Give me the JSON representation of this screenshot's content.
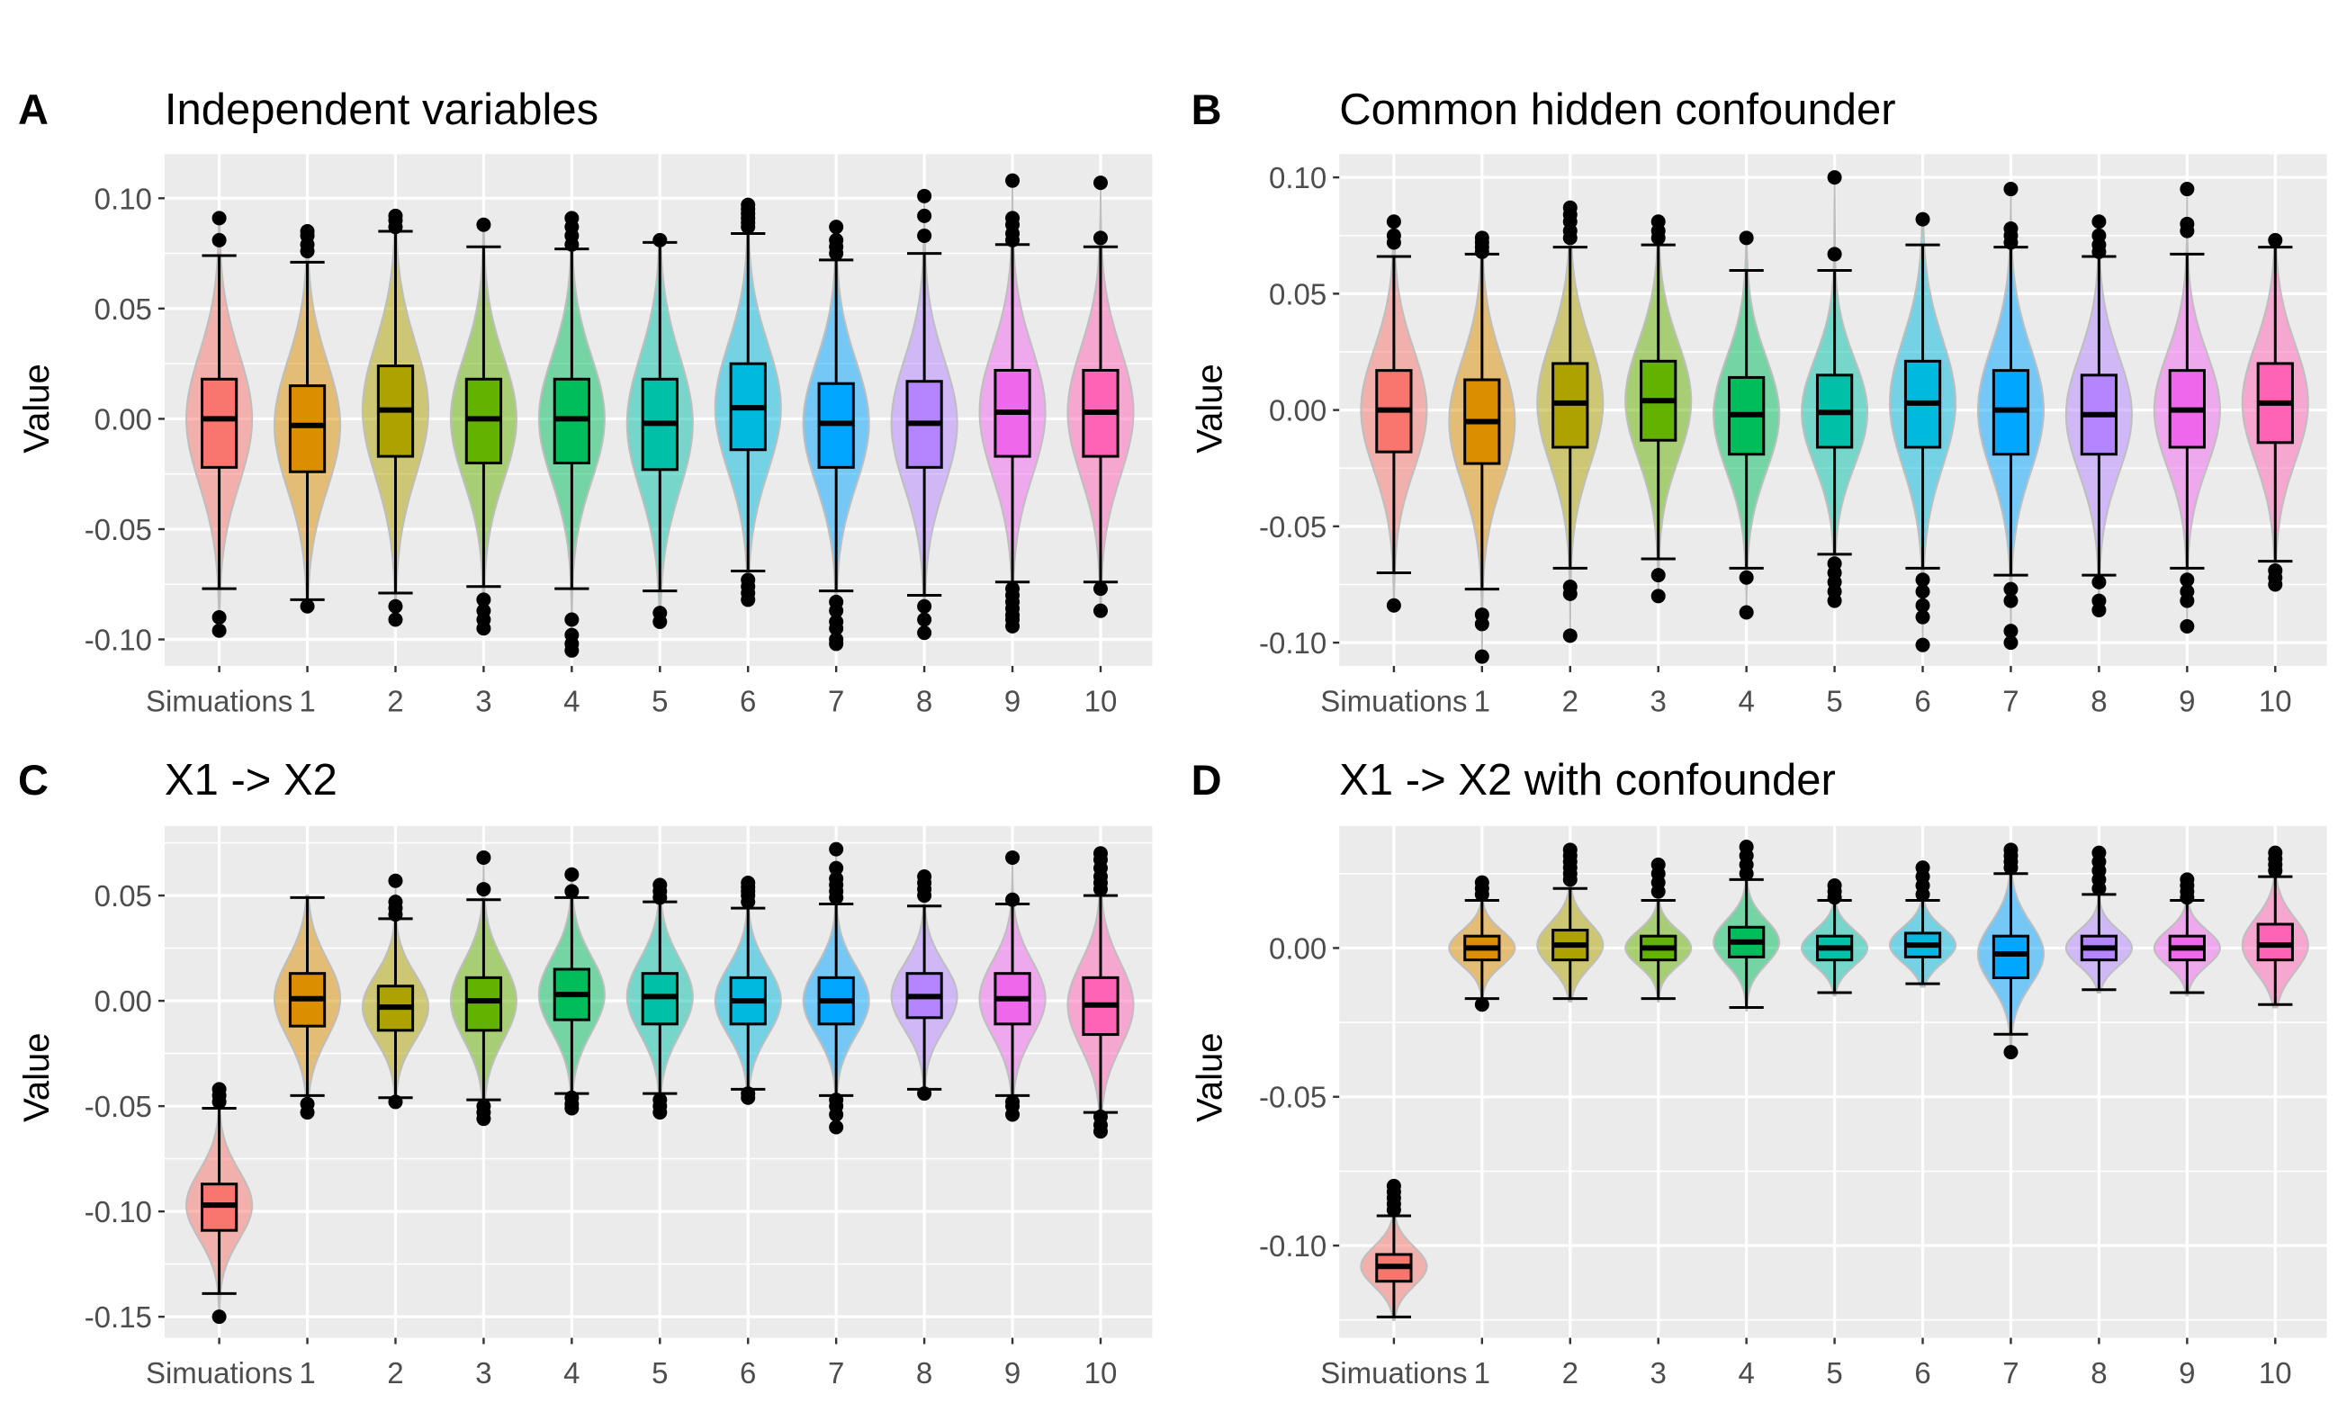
{
  "chart_data": [
    {
      "type": "boxplot",
      "subtype": "violin+box",
      "panel_label": "A",
      "title": "Independent variables",
      "ylabel": "Value",
      "xlabel": "",
      "categories": [
        "Simuations",
        "1",
        "2",
        "3",
        "4",
        "5",
        "6",
        "7",
        "8",
        "9",
        "10"
      ],
      "ylim": [
        -0.112,
        0.12
      ],
      "yticks": [
        -0.1,
        -0.05,
        0.0,
        0.05,
        0.1
      ],
      "ytick_labels": [
        "-0.10",
        "-0.05",
        "0.00",
        "0.05",
        "0.10"
      ],
      "boxes": [
        {
          "lower_whisker": -0.077,
          "q1": -0.022,
          "median": 0.0,
          "q3": 0.018,
          "upper_whisker": 0.074,
          "outliers": [
            0.091,
            0.081,
            -0.09,
            -0.096
          ],
          "violin_min": -0.098,
          "violin_max": 0.092
        },
        {
          "lower_whisker": -0.082,
          "q1": -0.024,
          "median": -0.003,
          "q3": 0.015,
          "upper_whisker": 0.071,
          "outliers": [
            0.085,
            0.083,
            0.079,
            0.076,
            -0.085
          ],
          "violin_min": -0.086,
          "violin_max": 0.086
        },
        {
          "lower_whisker": -0.079,
          "q1": -0.017,
          "median": 0.004,
          "q3": 0.024,
          "upper_whisker": 0.085,
          "outliers": [
            0.092,
            0.09,
            0.087,
            -0.085,
            -0.091
          ],
          "violin_min": -0.092,
          "violin_max": 0.093
        },
        {
          "lower_whisker": -0.076,
          "q1": -0.02,
          "median": 0.0,
          "q3": 0.018,
          "upper_whisker": 0.078,
          "outliers": [
            0.088,
            -0.082,
            -0.087,
            -0.091,
            -0.095
          ],
          "violin_min": -0.096,
          "violin_max": 0.089
        },
        {
          "lower_whisker": -0.077,
          "q1": -0.02,
          "median": 0.0,
          "q3": 0.018,
          "upper_whisker": 0.077,
          "outliers": [
            0.091,
            0.087,
            0.083,
            0.079,
            -0.091,
            -0.098,
            -0.102,
            -0.105
          ],
          "violin_min": -0.106,
          "violin_max": 0.092
        },
        {
          "lower_whisker": -0.078,
          "q1": -0.023,
          "median": -0.002,
          "q3": 0.018,
          "upper_whisker": 0.08,
          "outliers": [
            0.081,
            -0.088,
            -0.092
          ],
          "violin_min": -0.093,
          "violin_max": 0.082
        },
        {
          "lower_whisker": -0.069,
          "q1": -0.014,
          "median": 0.005,
          "q3": 0.025,
          "upper_whisker": 0.084,
          "outliers": [
            0.097,
            0.095,
            0.093,
            0.091,
            0.089,
            0.087,
            -0.073,
            -0.076,
            -0.079,
            -0.082
          ],
          "violin_min": -0.083,
          "violin_max": 0.098
        },
        {
          "lower_whisker": -0.078,
          "q1": -0.022,
          "median": -0.002,
          "q3": 0.016,
          "upper_whisker": 0.072,
          "outliers": [
            0.087,
            0.081,
            0.078,
            0.075,
            -0.083,
            -0.087,
            -0.092,
            -0.095,
            -0.1,
            -0.102
          ],
          "violin_min": -0.103,
          "violin_max": 0.088
        },
        {
          "lower_whisker": -0.08,
          "q1": -0.022,
          "median": -0.002,
          "q3": 0.017,
          "upper_whisker": 0.075,
          "outliers": [
            0.101,
            0.092,
            0.083,
            -0.085,
            -0.091,
            -0.097
          ],
          "violin_min": -0.098,
          "violin_max": 0.102
        },
        {
          "lower_whisker": -0.074,
          "q1": -0.017,
          "median": 0.003,
          "q3": 0.022,
          "upper_whisker": 0.079,
          "outliers": [
            0.108,
            0.091,
            0.088,
            0.084,
            0.081,
            -0.077,
            -0.08,
            -0.083,
            -0.086,
            -0.089,
            -0.091,
            -0.094
          ],
          "violin_min": -0.095,
          "violin_max": 0.109
        },
        {
          "lower_whisker": -0.074,
          "q1": -0.017,
          "median": 0.003,
          "q3": 0.022,
          "upper_whisker": 0.078,
          "outliers": [
            0.107,
            0.082,
            -0.077,
            -0.087
          ],
          "violin_min": -0.088,
          "violin_max": 0.108
        }
      ]
    },
    {
      "type": "boxplot",
      "subtype": "violin+box",
      "panel_label": "B",
      "title": "Common hidden confounder",
      "ylabel": "Value",
      "xlabel": "",
      "categories": [
        "Simuations",
        "1",
        "2",
        "3",
        "4",
        "5",
        "6",
        "7",
        "8",
        "9",
        "10"
      ],
      "ylim": [
        -0.11,
        0.11
      ],
      "yticks": [
        -0.1,
        -0.05,
        0.0,
        0.05,
        0.1
      ],
      "ytick_labels": [
        "-0.10",
        "-0.05",
        "0.00",
        "0.05",
        "0.10"
      ],
      "boxes": [
        {
          "lower_whisker": -0.07,
          "q1": -0.018,
          "median": 0.0,
          "q3": 0.017,
          "upper_whisker": 0.066,
          "outliers": [
            0.081,
            0.075,
            0.072,
            -0.084
          ],
          "violin_min": -0.085,
          "violin_max": 0.082
        },
        {
          "lower_whisker": -0.077,
          "q1": -0.023,
          "median": -0.005,
          "q3": 0.013,
          "upper_whisker": 0.067,
          "outliers": [
            0.074,
            0.072,
            0.07,
            0.068,
            -0.088,
            -0.092,
            -0.106
          ],
          "violin_min": -0.107,
          "violin_max": 0.075
        },
        {
          "lower_whisker": -0.068,
          "q1": -0.016,
          "median": 0.003,
          "q3": 0.02,
          "upper_whisker": 0.07,
          "outliers": [
            0.087,
            0.084,
            0.081,
            0.077,
            0.074,
            -0.076,
            -0.079,
            -0.097
          ],
          "violin_min": -0.098,
          "violin_max": 0.088
        },
        {
          "lower_whisker": -0.064,
          "q1": -0.013,
          "median": 0.004,
          "q3": 0.021,
          "upper_whisker": 0.071,
          "outliers": [
            0.081,
            0.077,
            0.074,
            -0.071,
            -0.08
          ],
          "violin_min": -0.081,
          "violin_max": 0.082
        },
        {
          "lower_whisker": -0.068,
          "q1": -0.019,
          "median": -0.002,
          "q3": 0.014,
          "upper_whisker": 0.06,
          "outliers": [
            0.074,
            -0.072,
            -0.087
          ],
          "violin_min": -0.088,
          "violin_max": 0.075
        },
        {
          "lower_whisker": -0.062,
          "q1": -0.016,
          "median": -0.001,
          "q3": 0.015,
          "upper_whisker": 0.06,
          "outliers": [
            0.1,
            0.067,
            -0.066,
            -0.07,
            -0.074,
            -0.078,
            -0.082
          ],
          "violin_min": -0.083,
          "violin_max": 0.101
        },
        {
          "lower_whisker": -0.068,
          "q1": -0.016,
          "median": 0.003,
          "q3": 0.021,
          "upper_whisker": 0.071,
          "outliers": [
            0.082,
            -0.073,
            -0.078,
            -0.084,
            -0.089,
            -0.101
          ],
          "violin_min": -0.102,
          "violin_max": 0.083
        },
        {
          "lower_whisker": -0.071,
          "q1": -0.019,
          "median": 0.0,
          "q3": 0.017,
          "upper_whisker": 0.07,
          "outliers": [
            0.095,
            0.078,
            0.075,
            0.072,
            -0.077,
            -0.082,
            -0.095,
            -0.1
          ],
          "violin_min": -0.101,
          "violin_max": 0.096
        },
        {
          "lower_whisker": -0.071,
          "q1": -0.019,
          "median": -0.002,
          "q3": 0.015,
          "upper_whisker": 0.066,
          "outliers": [
            0.081,
            0.075,
            0.071,
            0.068,
            -0.074,
            -0.082,
            -0.086
          ],
          "violin_min": -0.087,
          "violin_max": 0.082
        },
        {
          "lower_whisker": -0.068,
          "q1": -0.016,
          "median": 0.0,
          "q3": 0.017,
          "upper_whisker": 0.067,
          "outliers": [
            0.095,
            0.08,
            0.077,
            -0.073,
            -0.078,
            -0.082,
            -0.093
          ],
          "violin_min": -0.094,
          "violin_max": 0.096
        },
        {
          "lower_whisker": -0.065,
          "q1": -0.014,
          "median": 0.003,
          "q3": 0.02,
          "upper_whisker": 0.07,
          "outliers": [
            0.073,
            -0.069,
            -0.072,
            -0.075
          ],
          "violin_min": -0.076,
          "violin_max": 0.074
        }
      ]
    },
    {
      "type": "boxplot",
      "subtype": "violin+box",
      "panel_label": "C",
      "title": "X1 -> X2",
      "ylabel": "Value",
      "xlabel": "",
      "categories": [
        "Simuations",
        "1",
        "2",
        "3",
        "4",
        "5",
        "6",
        "7",
        "8",
        "9",
        "10"
      ],
      "ylim": [
        -0.16,
        0.083
      ],
      "yticks": [
        -0.15,
        -0.1,
        -0.05,
        0.0,
        0.05
      ],
      "ytick_labels": [
        "-0.15",
        "-0.10",
        "-0.05",
        "0.00",
        "0.05"
      ],
      "boxes": [
        {
          "lower_whisker": -0.139,
          "q1": -0.109,
          "median": -0.097,
          "q3": -0.087,
          "upper_whisker": -0.051,
          "outliers": [
            -0.042,
            -0.045,
            -0.048,
            -0.15
          ],
          "violin_min": -0.151,
          "violin_max": -0.041
        },
        {
          "lower_whisker": -0.045,
          "q1": -0.012,
          "median": 0.001,
          "q3": 0.013,
          "upper_whisker": 0.049,
          "outliers": [
            -0.049,
            -0.053
          ],
          "violin_min": -0.054,
          "violin_max": 0.05
        },
        {
          "lower_whisker": -0.046,
          "q1": -0.014,
          "median": -0.003,
          "q3": 0.007,
          "upper_whisker": 0.039,
          "outliers": [
            0.057,
            0.047,
            0.044,
            0.041,
            -0.048
          ],
          "violin_min": -0.049,
          "violin_max": 0.058
        },
        {
          "lower_whisker": -0.047,
          "q1": -0.014,
          "median": 0.0,
          "q3": 0.011,
          "upper_whisker": 0.048,
          "outliers": [
            0.068,
            0.053,
            -0.05,
            -0.053,
            -0.056
          ],
          "violin_min": -0.057,
          "violin_max": 0.069
        },
        {
          "lower_whisker": -0.044,
          "q1": -0.009,
          "median": 0.003,
          "q3": 0.015,
          "upper_whisker": 0.049,
          "outliers": [
            0.06,
            0.052,
            -0.046,
            -0.049,
            -0.051
          ],
          "violin_min": -0.052,
          "violin_max": 0.061
        },
        {
          "lower_whisker": -0.044,
          "q1": -0.011,
          "median": 0.002,
          "q3": 0.013,
          "upper_whisker": 0.047,
          "outliers": [
            0.055,
            0.052,
            0.049,
            -0.047,
            -0.05,
            -0.053
          ],
          "violin_min": -0.054,
          "violin_max": 0.056
        },
        {
          "lower_whisker": -0.042,
          "q1": -0.011,
          "median": 0.0,
          "q3": 0.011,
          "upper_whisker": 0.044,
          "outliers": [
            0.056,
            0.054,
            0.052,
            0.05,
            0.047,
            -0.044,
            -0.046
          ],
          "violin_min": -0.047,
          "violin_max": 0.057
        },
        {
          "lower_whisker": -0.045,
          "q1": -0.011,
          "median": 0.0,
          "q3": 0.011,
          "upper_whisker": 0.046,
          "outliers": [
            0.072,
            0.063,
            0.058,
            0.055,
            0.052,
            0.049,
            -0.047,
            -0.05,
            -0.054,
            -0.06
          ],
          "violin_min": -0.061,
          "violin_max": 0.073
        },
        {
          "lower_whisker": -0.042,
          "q1": -0.008,
          "median": 0.002,
          "q3": 0.013,
          "upper_whisker": 0.045,
          "outliers": [
            0.059,
            0.056,
            0.053,
            0.05,
            -0.044
          ],
          "violin_min": -0.045,
          "violin_max": 0.06
        },
        {
          "lower_whisker": -0.045,
          "q1": -0.011,
          "median": 0.001,
          "q3": 0.013,
          "upper_whisker": 0.046,
          "outliers": [
            0.068,
            0.048,
            -0.048,
            -0.05,
            -0.054
          ],
          "violin_min": -0.055,
          "violin_max": 0.069
        },
        {
          "lower_whisker": -0.053,
          "q1": -0.016,
          "median": -0.002,
          "q3": 0.011,
          "upper_whisker": 0.05,
          "outliers": [
            0.07,
            0.067,
            0.063,
            0.059,
            0.056,
            0.053,
            -0.055,
            -0.059,
            -0.062
          ],
          "violin_min": -0.063,
          "violin_max": 0.071
        }
      ]
    },
    {
      "type": "boxplot",
      "subtype": "violin+box",
      "panel_label": "D",
      "title": "X1 -> X2 with confounder",
      "ylabel": "Value",
      "xlabel": "",
      "categories": [
        "Simuations",
        "1",
        "2",
        "3",
        "4",
        "5",
        "6",
        "7",
        "8",
        "9",
        "10"
      ],
      "ylim": [
        -0.131,
        0.041
      ],
      "yticks": [
        -0.1,
        -0.05,
        0.0
      ],
      "ytick_labels": [
        "-0.10",
        "-0.05",
        "0.00"
      ],
      "boxes": [
        {
          "lower_whisker": -0.124,
          "q1": -0.112,
          "median": -0.107,
          "q3": -0.103,
          "upper_whisker": -0.09,
          "outliers": [
            -0.08,
            -0.082,
            -0.084,
            -0.086,
            -0.088
          ],
          "violin_min": -0.125,
          "violin_max": -0.079
        },
        {
          "lower_whisker": -0.017,
          "q1": -0.004,
          "median": 0.0,
          "q3": 0.004,
          "upper_whisker": 0.016,
          "outliers": [
            0.022,
            0.02,
            0.018,
            -0.019
          ],
          "violin_min": -0.02,
          "violin_max": 0.023
        },
        {
          "lower_whisker": -0.017,
          "q1": -0.004,
          "median": 0.001,
          "q3": 0.006,
          "upper_whisker": 0.02,
          "outliers": [
            0.033,
            0.031,
            0.029,
            0.027,
            0.025,
            0.023
          ],
          "violin_min": -0.018,
          "violin_max": 0.034
        },
        {
          "lower_whisker": -0.017,
          "q1": -0.004,
          "median": 0.0,
          "q3": 0.004,
          "upper_whisker": 0.016,
          "outliers": [
            0.028,
            0.025,
            0.022,
            0.019
          ],
          "violin_min": -0.018,
          "violin_max": 0.029
        },
        {
          "lower_whisker": -0.02,
          "q1": -0.003,
          "median": 0.002,
          "q3": 0.007,
          "upper_whisker": 0.023,
          "outliers": [
            0.034,
            0.031,
            0.028,
            0.025
          ],
          "violin_min": -0.021,
          "violin_max": 0.035
        },
        {
          "lower_whisker": -0.015,
          "q1": -0.004,
          "median": 0.0,
          "q3": 0.004,
          "upper_whisker": 0.016,
          "outliers": [
            0.021,
            0.019,
            0.017
          ],
          "violin_min": -0.016,
          "violin_max": 0.022
        },
        {
          "lower_whisker": -0.012,
          "q1": -0.003,
          "median": 0.001,
          "q3": 0.005,
          "upper_whisker": 0.016,
          "outliers": [
            0.027,
            0.024,
            0.021,
            0.018
          ],
          "violin_min": -0.013,
          "violin_max": 0.028
        },
        {
          "lower_whisker": -0.029,
          "q1": -0.01,
          "median": -0.002,
          "q3": 0.004,
          "upper_whisker": 0.025,
          "outliers": [
            0.033,
            0.031,
            0.029,
            0.027,
            -0.035
          ],
          "violin_min": -0.036,
          "violin_max": 0.034
        },
        {
          "lower_whisker": -0.014,
          "q1": -0.004,
          "median": 0.0,
          "q3": 0.004,
          "upper_whisker": 0.018,
          "outliers": [
            0.032,
            0.029,
            0.026,
            0.023,
            0.02
          ],
          "violin_min": -0.015,
          "violin_max": 0.033
        },
        {
          "lower_whisker": -0.015,
          "q1": -0.004,
          "median": 0.0,
          "q3": 0.004,
          "upper_whisker": 0.016,
          "outliers": [
            0.023,
            0.021,
            0.019,
            0.017
          ],
          "violin_min": -0.016,
          "violin_max": 0.024
        },
        {
          "lower_whisker": -0.019,
          "q1": -0.004,
          "median": 0.001,
          "q3": 0.008,
          "upper_whisker": 0.024,
          "outliers": [
            0.032,
            0.03,
            0.028,
            0.026
          ],
          "violin_min": -0.02,
          "violin_max": 0.033
        }
      ]
    }
  ],
  "palette": [
    "#F8766D",
    "#DB8E00",
    "#AEA200",
    "#64B200",
    "#00BD5C",
    "#00C1A7",
    "#00BADE",
    "#00A6FF",
    "#B385FF",
    "#EF67EB",
    "#FF63B6"
  ],
  "panel_background": "#EBEBEB",
  "grid_color": "#FFFFFF",
  "grid": true,
  "legend": "none"
}
